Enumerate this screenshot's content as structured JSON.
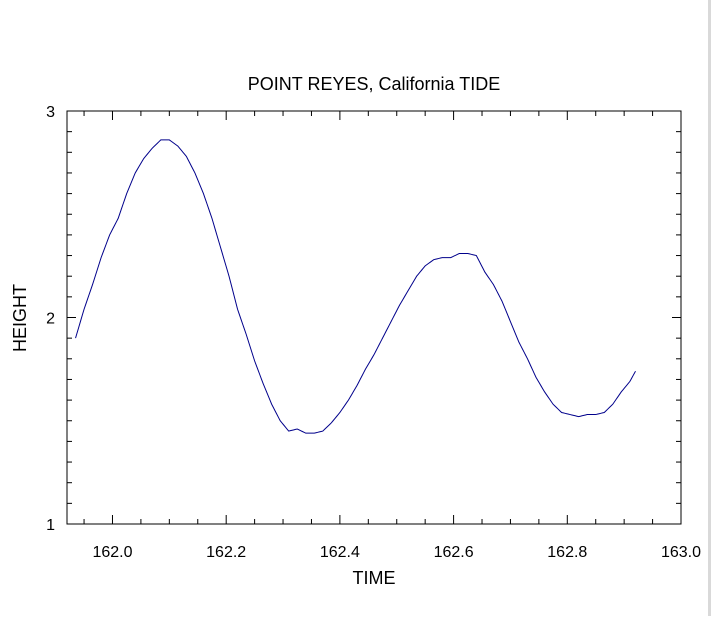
{
  "chart_data": {
    "type": "line",
    "title": "POINT REYES, California TIDE",
    "xlabel": "TIME",
    "ylabel": "HEIGHT",
    "xlim": [
      161.92,
      163.0
    ],
    "ylim": [
      1,
      3
    ],
    "x_major_ticks": [
      162.0,
      162.2,
      162.4,
      162.6,
      162.8,
      163.0
    ],
    "x_tick_labels": [
      "162.0",
      "162.2",
      "162.4",
      "162.6",
      "162.8",
      "163.0"
    ],
    "y_major_ticks": [
      1,
      2,
      3
    ],
    "y_tick_labels": [
      "1",
      "2",
      "3"
    ],
    "grid": false,
    "legend": "none",
    "line_color": "#00008b",
    "series": [
      {
        "x": [
          161.935,
          161.95,
          161.965,
          161.98,
          161.995,
          162.01,
          162.025,
          162.04,
          162.055,
          162.07,
          162.085,
          162.1,
          162.115,
          162.13,
          162.145,
          162.16,
          162.175,
          162.19,
          162.205,
          162.22,
          162.235,
          162.25,
          162.265,
          162.28,
          162.295,
          162.31,
          162.325,
          162.34,
          162.355,
          162.37,
          162.385,
          162.4,
          162.415,
          162.43,
          162.445,
          162.46,
          162.475,
          162.49,
          162.505,
          162.52,
          162.535,
          162.55,
          162.565,
          162.58,
          162.595,
          162.61,
          162.625,
          162.64,
          162.655,
          162.67,
          162.685,
          162.7,
          162.715,
          162.73,
          162.745,
          162.76,
          162.775,
          162.79,
          162.805,
          162.82,
          162.835,
          162.85,
          162.865,
          162.88,
          162.895,
          162.91,
          162.92
        ],
        "y": [
          1.9,
          2.04,
          2.16,
          2.29,
          2.4,
          2.48,
          2.6,
          2.7,
          2.77,
          2.82,
          2.86,
          2.86,
          2.83,
          2.78,
          2.7,
          2.6,
          2.48,
          2.34,
          2.2,
          2.04,
          1.92,
          1.79,
          1.68,
          1.58,
          1.5,
          1.45,
          1.46,
          1.44,
          1.44,
          1.45,
          1.49,
          1.54,
          1.6,
          1.67,
          1.75,
          1.82,
          1.9,
          1.98,
          2.06,
          2.13,
          2.2,
          2.25,
          2.28,
          2.29,
          2.29,
          2.31,
          2.31,
          2.3,
          2.22,
          2.16,
          2.08,
          1.98,
          1.88,
          1.8,
          1.71,
          1.64,
          1.58,
          1.54,
          1.53,
          1.52,
          1.53,
          1.53,
          1.54,
          1.58,
          1.64,
          1.69,
          1.74
        ]
      }
    ]
  }
}
